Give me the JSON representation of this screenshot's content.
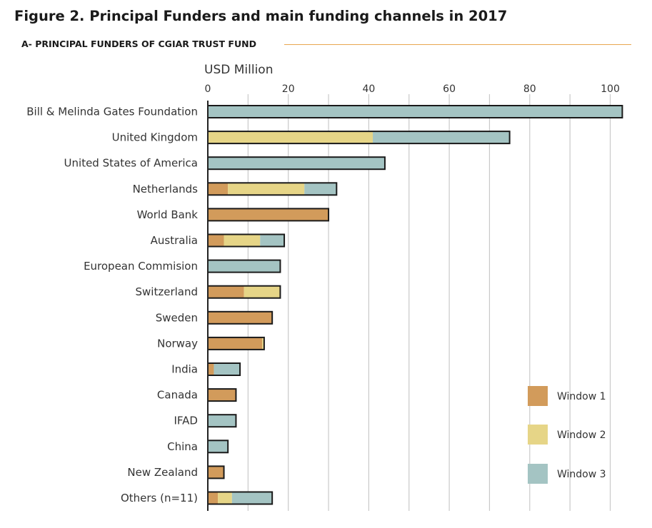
{
  "figure_title": "Figure 2. Principal Funders and main funding channels in 2017",
  "subtitle": "A- PRINCIPAL FUNDERS OF CGIAR TRUST FUND",
  "colors": {
    "window1": "#d29b5b",
    "window2": "#e6d587",
    "window3": "#a4c4c3",
    "grid": "#c9c9c9",
    "rule": "#e8a64f"
  },
  "chart_data": {
    "type": "bar",
    "orientation": "horizontal",
    "stacked": true,
    "title": "",
    "xlabel": "USD Million",
    "ylabel": "",
    "xlim": [
      0,
      104
    ],
    "xticks": [
      0,
      20,
      40,
      60,
      80,
      100
    ],
    "grid": true,
    "legend": "bottom-right",
    "categories": [
      "Bill & Melinda Gates Foundation",
      "United Kingdom",
      "United States of America",
      "Netherlands",
      "World Bank",
      "Australia",
      "European Commision",
      "Switzerland",
      "Sweden",
      "Norway",
      "India",
      "Canada",
      "IFAD",
      "China",
      "New Zealand",
      "Others (n=11)"
    ],
    "series": [
      {
        "name": "Window 1",
        "values": [
          0,
          0,
          0,
          5,
          30,
          4,
          0,
          9,
          16,
          13.5,
          1.5,
          7,
          0,
          0,
          4,
          2.5
        ]
      },
      {
        "name": "Window 2",
        "values": [
          0,
          41,
          0,
          19,
          0,
          9,
          0,
          9,
          0,
          0.5,
          0,
          0,
          0,
          0,
          0,
          3.5
        ]
      },
      {
        "name": "Window 3",
        "values": [
          103,
          34,
          44,
          8,
          0,
          6,
          18,
          0,
          0,
          0,
          6.5,
          0,
          7,
          5,
          0,
          10
        ]
      }
    ]
  }
}
